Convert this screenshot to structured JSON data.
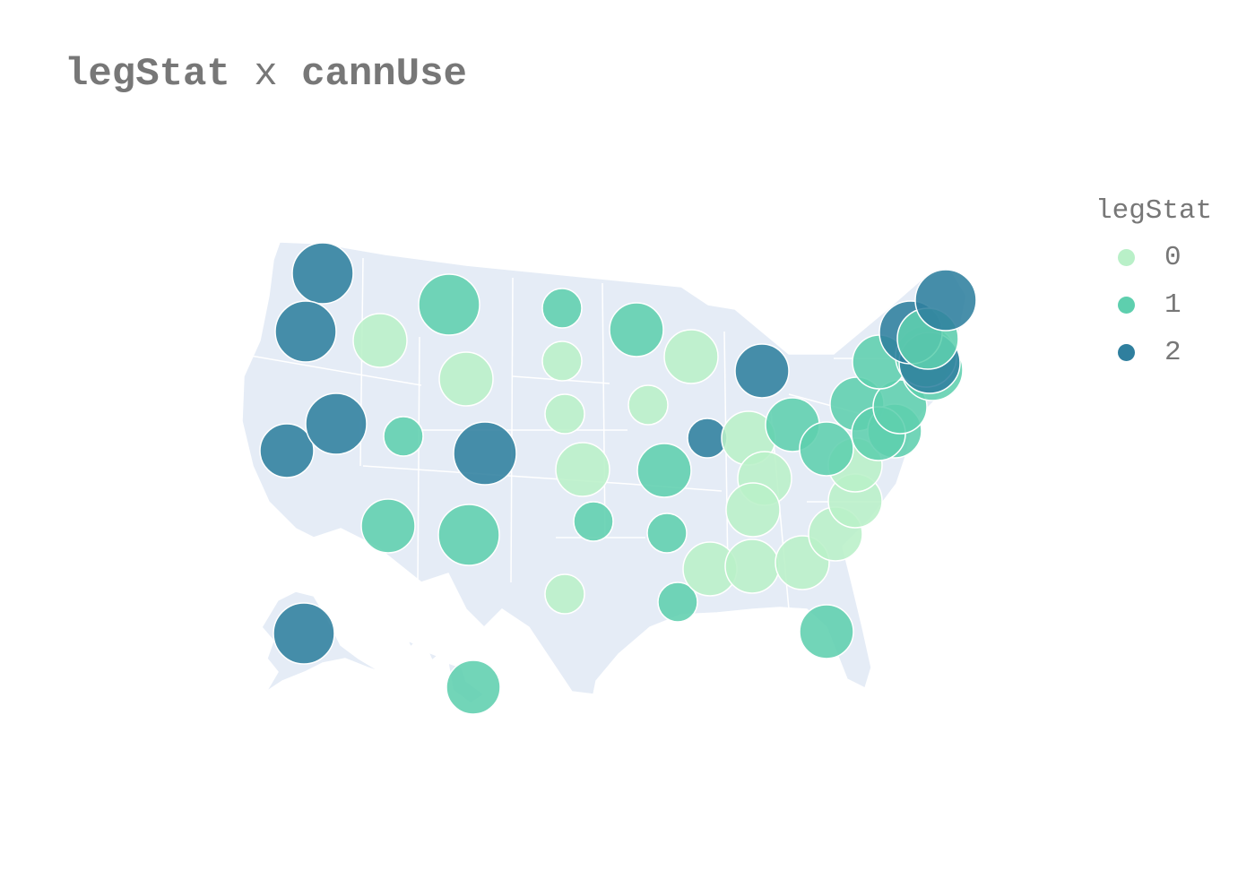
{
  "title": {
    "left": "legStat",
    "op": "x",
    "right": "cannUse"
  },
  "colors": {
    "land": "#e5ecf6",
    "border": "#ffffff",
    "marker_stroke": "#ffffff"
  },
  "legend": {
    "title": "legStat",
    "items": [
      {
        "label": "0",
        "color": "#b9f0c8"
      },
      {
        "label": "1",
        "color": "#5ecfae"
      },
      {
        "label": "2",
        "color": "#2f7f9e"
      }
    ]
  },
  "chart_data": {
    "type": "scatter",
    "map": "USA states bubble map",
    "color_field": "legStat",
    "size_field": "cannUse",
    "categories": [
      "0",
      "1",
      "2"
    ],
    "points": [
      {
        "state": "WA",
        "legStat": 2,
        "size": 3
      },
      {
        "state": "OR",
        "legStat": 2,
        "size": 3
      },
      {
        "state": "CA",
        "legStat": 2,
        "size": 2
      },
      {
        "state": "NV",
        "legStat": 2,
        "size": 3
      },
      {
        "state": "ID",
        "legStat": 0,
        "size": 2
      },
      {
        "state": "MT",
        "legStat": 1,
        "size": 3
      },
      {
        "state": "WY",
        "legStat": 0,
        "size": 2
      },
      {
        "state": "UT",
        "legStat": 1,
        "size": 1
      },
      {
        "state": "CO",
        "legStat": 2,
        "size": 4
      },
      {
        "state": "AZ",
        "legStat": 1,
        "size": 2
      },
      {
        "state": "NM",
        "legStat": 1,
        "size": 3
      },
      {
        "state": "ND",
        "legStat": 1,
        "size": 1
      },
      {
        "state": "SD",
        "legStat": 0,
        "size": 1
      },
      {
        "state": "NE",
        "legStat": 0,
        "size": 1
      },
      {
        "state": "KS",
        "legStat": 0,
        "size": 2
      },
      {
        "state": "OK",
        "legStat": 1,
        "size": 1
      },
      {
        "state": "TX",
        "legStat": 0,
        "size": 1
      },
      {
        "state": "MN",
        "legStat": 1,
        "size": 2
      },
      {
        "state": "IA",
        "legStat": 0,
        "size": 1
      },
      {
        "state": "MO",
        "legStat": 1,
        "size": 2
      },
      {
        "state": "AR",
        "legStat": 1,
        "size": 1
      },
      {
        "state": "LA",
        "legStat": 1,
        "size": 1
      },
      {
        "state": "WI",
        "legStat": 0,
        "size": 2
      },
      {
        "state": "IL",
        "legStat": 2,
        "size": 1
      },
      {
        "state": "MI",
        "legStat": 2,
        "size": 2
      },
      {
        "state": "IN",
        "legStat": 0,
        "size": 2
      },
      {
        "state": "OH",
        "legStat": 1,
        "size": 2
      },
      {
        "state": "KY",
        "legStat": 0,
        "size": 2
      },
      {
        "state": "TN",
        "legStat": 0,
        "size": 2
      },
      {
        "state": "MS",
        "legStat": 0,
        "size": 2
      },
      {
        "state": "AL",
        "legStat": 0,
        "size": 2
      },
      {
        "state": "GA",
        "legStat": 0,
        "size": 2
      },
      {
        "state": "FL",
        "legStat": 1,
        "size": 2
      },
      {
        "state": "SC",
        "legStat": 0,
        "size": 2
      },
      {
        "state": "NC",
        "legStat": 0,
        "size": 2
      },
      {
        "state": "VA",
        "legStat": 0,
        "size": 2
      },
      {
        "state": "WV",
        "legStat": 1,
        "size": 2
      },
      {
        "state": "PA",
        "legStat": 1,
        "size": 2
      },
      {
        "state": "MD",
        "legStat": 1,
        "size": 2
      },
      {
        "state": "DE",
        "legStat": 1,
        "size": 2
      },
      {
        "state": "NJ",
        "legStat": 1,
        "size": 2
      },
      {
        "state": "NY",
        "legStat": 1,
        "size": 2
      },
      {
        "state": "CT",
        "legStat": 1,
        "size": 3
      },
      {
        "state": "RI",
        "legStat": 1,
        "size": 3
      },
      {
        "state": "MA",
        "legStat": 2,
        "size": 3
      },
      {
        "state": "VT",
        "legStat": 2,
        "size": 4
      },
      {
        "state": "NH",
        "legStat": 1,
        "size": 3
      },
      {
        "state": "ME",
        "legStat": 2,
        "size": 3
      },
      {
        "state": "AK",
        "legStat": 2,
        "size": 3
      },
      {
        "state": "HI",
        "legStat": 1,
        "size": 2
      }
    ]
  }
}
